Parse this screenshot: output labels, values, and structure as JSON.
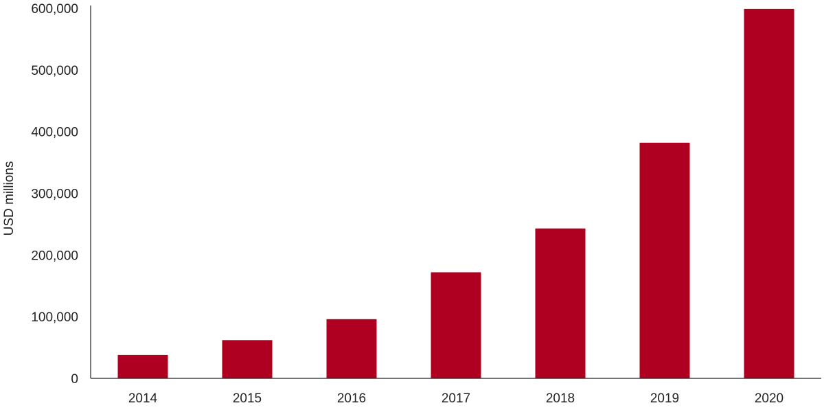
{
  "colors": {
    "bar": "#b00021",
    "axis": "#222222",
    "text": "#222222",
    "background": "#ffffff"
  },
  "chart_data": {
    "type": "bar",
    "title": "",
    "xlabel": "",
    "ylabel": "USD millions",
    "categories": [
      "2014",
      "2015",
      "2016",
      "2017",
      "2018",
      "2019",
      "2020"
    ],
    "series": [
      {
        "values": [
          38000,
          62000,
          96000,
          172000,
          243000,
          382000,
          599000
        ]
      }
    ],
    "ylim": [
      0,
      600000
    ],
    "yticks": [
      0,
      100000,
      200000,
      300000,
      400000,
      500000,
      600000
    ],
    "ytick_labels": [
      "0",
      "100,000",
      "200,000",
      "300,000",
      "400,000",
      "500,000",
      "600,000"
    ],
    "grid": false,
    "legend": "none"
  }
}
